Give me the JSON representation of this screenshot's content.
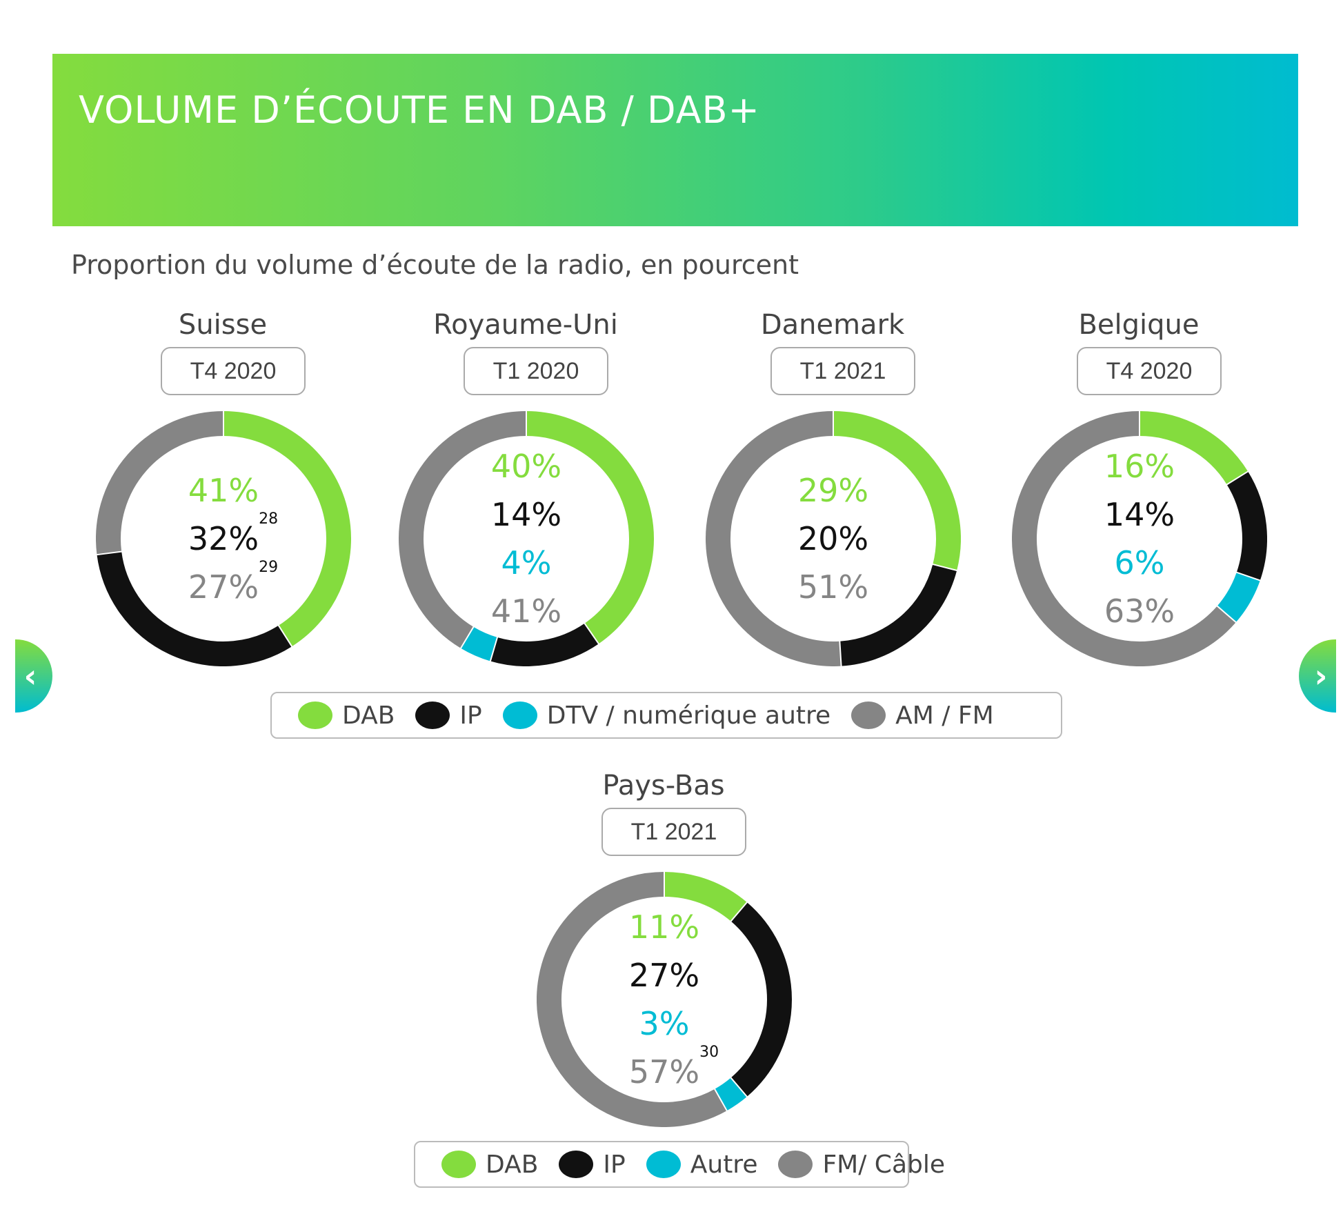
{
  "header": {
    "title": "VOLUME D’ÉCOUTE EN DAB / DAB+"
  },
  "subtitle": "Proportion du volume d’écoute de la radio, en pourcent",
  "colors": {
    "DAB": "#84dc3e",
    "IP": "#111111",
    "DTV": "#00bcd4",
    "AMFM": "#858585"
  },
  "chart_data": [
    {
      "type": "pie",
      "title": "Suisse",
      "period": "T4 2020",
      "slices": [
        {
          "label": "DAB",
          "value": 41,
          "text": "41%",
          "note": ""
        },
        {
          "label": "IP",
          "value": 32,
          "text": "32%",
          "note": "28"
        },
        {
          "label": "AM / FM",
          "value": 27,
          "text": "27%",
          "note": "29"
        }
      ]
    },
    {
      "type": "pie",
      "title": "Royaume-Uni",
      "period": "T1 2020",
      "slices": [
        {
          "label": "DAB",
          "value": 40,
          "text": "40%",
          "note": ""
        },
        {
          "label": "IP",
          "value": 14,
          "text": "14%",
          "note": ""
        },
        {
          "label": "DTV / numérique autre",
          "value": 4,
          "text": "4%",
          "note": ""
        },
        {
          "label": "AM / FM",
          "value": 41,
          "text": "41%",
          "note": ""
        }
      ]
    },
    {
      "type": "pie",
      "title": "Danemark",
      "period": "T1 2021",
      "slices": [
        {
          "label": "DAB",
          "value": 29,
          "text": "29%",
          "note": ""
        },
        {
          "label": "IP",
          "value": 20,
          "text": "20%",
          "note": ""
        },
        {
          "label": "AM / FM",
          "value": 51,
          "text": "51%",
          "note": ""
        }
      ]
    },
    {
      "type": "pie",
      "title": "Belgique",
      "period": "T4 2020",
      "slices": [
        {
          "label": "DAB",
          "value": 16,
          "text": "16%",
          "note": ""
        },
        {
          "label": "IP",
          "value": 14,
          "text": "14%",
          "note": ""
        },
        {
          "label": "DTV / numérique autre",
          "value": 6,
          "text": "6%",
          "note": ""
        },
        {
          "label": "AM / FM",
          "value": 63,
          "text": "63%",
          "note": ""
        }
      ]
    },
    {
      "type": "pie",
      "title": "Pays-Bas",
      "period": "T1 2021",
      "slices": [
        {
          "label": "DAB",
          "value": 11,
          "text": "11%",
          "note": ""
        },
        {
          "label": "IP",
          "value": 27,
          "text": "27%",
          "note": ""
        },
        {
          "label": "Autre",
          "value": 3,
          "text": "3%",
          "note": ""
        },
        {
          "label": "FM/ Câble",
          "value": 57,
          "text": "57%",
          "note": "30"
        }
      ]
    }
  ],
  "legend_top": [
    "DAB",
    "IP",
    "DTV / numérique autre",
    "AM / FM"
  ],
  "legend_bottom": [
    "DAB",
    "IP",
    "Autre",
    "FM/ Câble"
  ]
}
